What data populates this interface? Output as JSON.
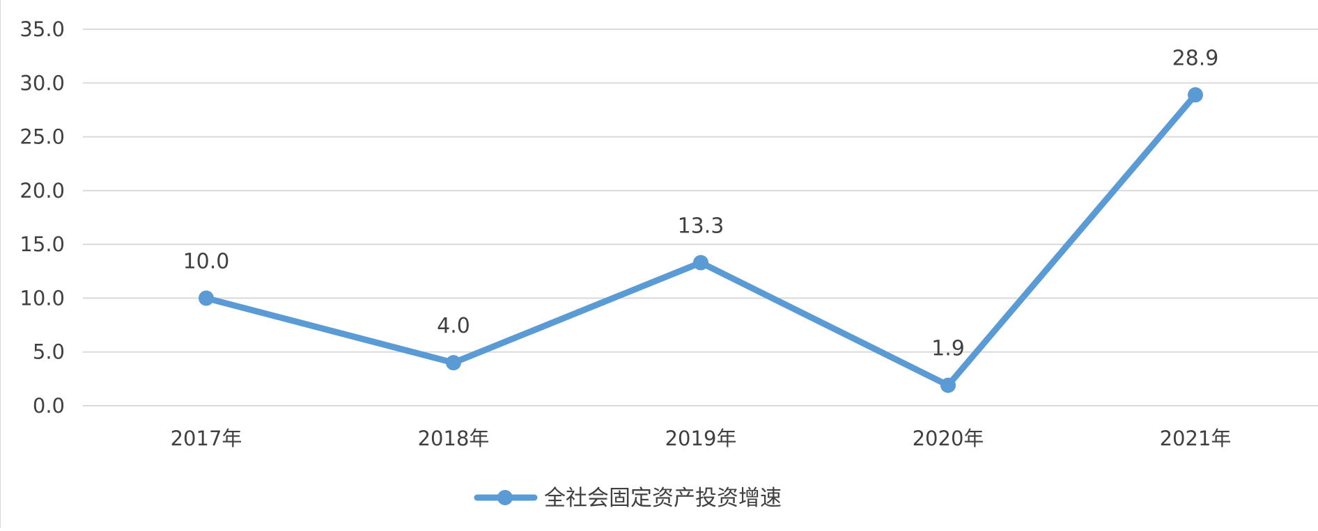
{
  "chart_data": {
    "type": "line",
    "title": "",
    "xlabel": "",
    "ylabel": "",
    "categories": [
      "2017年",
      "2018年",
      "2019年",
      "2020年",
      "2021年"
    ],
    "series": [
      {
        "name": "全社会固定资产投资增速",
        "values": [
          10.0,
          4.0,
          13.3,
          1.9,
          28.9
        ],
        "data_labels": [
          "10.0",
          "4.0",
          "13.3",
          "1.9",
          "28.9"
        ],
        "color": "#5b9bd5"
      }
    ],
    "ylim": [
      0,
      35
    ],
    "y_ticks": [
      0,
      5,
      10,
      15,
      20,
      25,
      30,
      35
    ],
    "y_tick_labels": [
      "0.0",
      "5.0",
      "10.0",
      "15.0",
      "20.0",
      "25.0",
      "30.0",
      "35.0"
    ],
    "grid": true,
    "gridline_color": "#d9d9d9",
    "legend_position": "bottom"
  }
}
